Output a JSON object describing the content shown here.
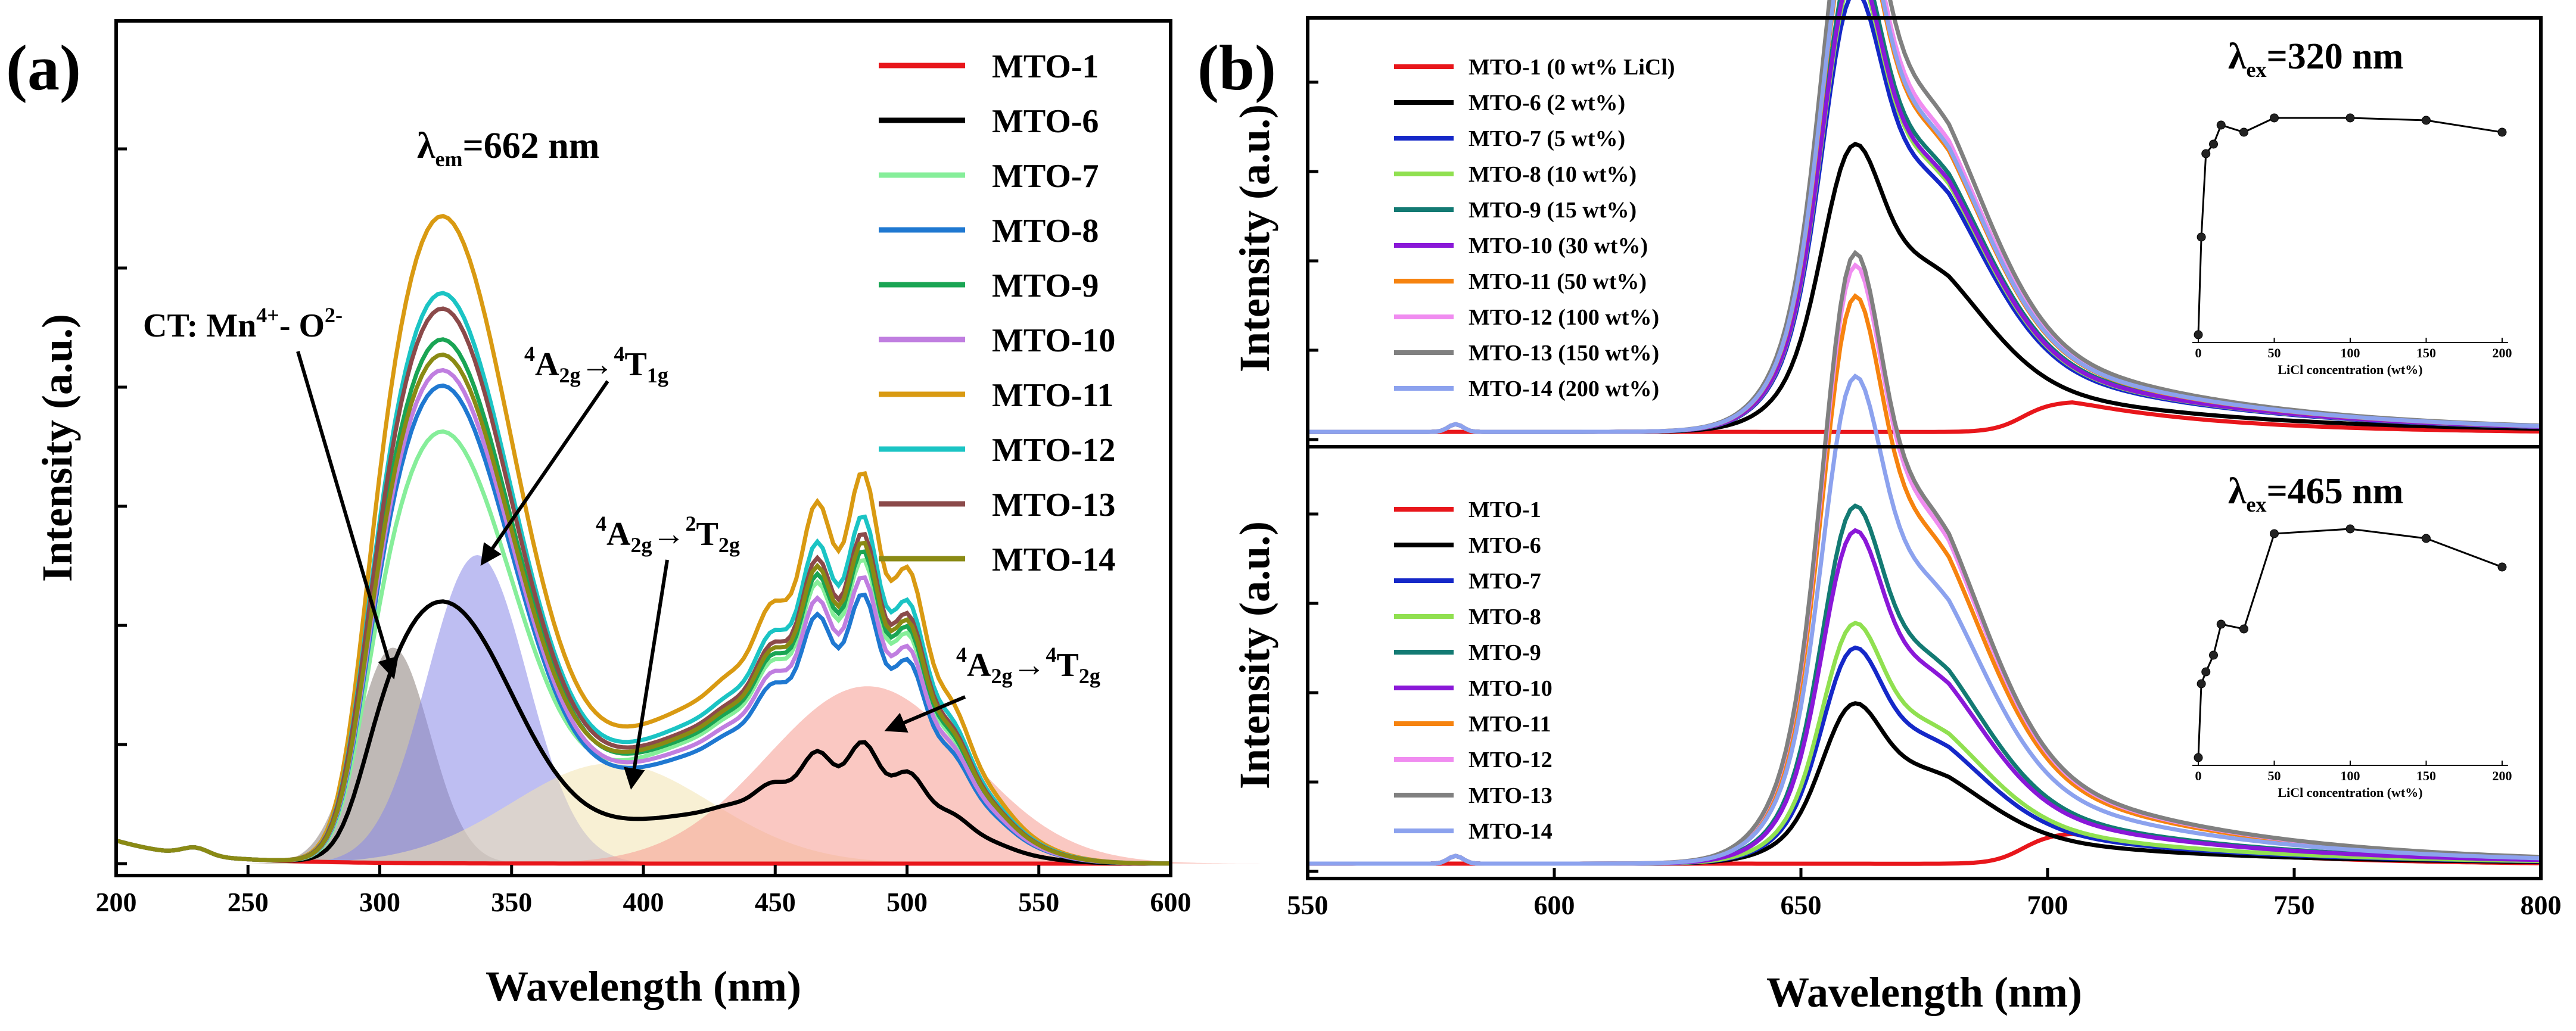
{
  "chart_data": [
    {
      "panel": "(a)",
      "type": "line",
      "xlabel": "Wavelength (nm)",
      "ylabel": "Intensity (a.u.)",
      "xlim": [
        200,
        600
      ],
      "xticks": [
        200,
        250,
        300,
        350,
        400,
        450,
        500,
        550,
        600
      ],
      "ylim": [
        0,
        1.0
      ],
      "y_tick_labels_shown": false,
      "condition": "λem=662 nm",
      "condition_main": "λ",
      "condition_sub": "em",
      "condition_value": "=662 nm",
      "legend_position": "top-right",
      "annotations": [
        {
          "text": "CT: Mn⁴⁺- O²⁻",
          "part1": "CT: Mn",
          "sup1": "4+",
          "part2": "- O",
          "sup2": "2-",
          "arrow_to": [
            305,
            0.3
          ]
        },
        {
          "text": "⁴A2g→⁴T1g",
          "pre": "4",
          "a": "A",
          "a_sub": "2g",
          "arrow": "→",
          "pre2": "4",
          "b": "T",
          "b_sub": "1g",
          "arrow_to": [
            330,
            0.4
          ]
        },
        {
          "text": "⁴A2g→²T2g",
          "pre": "4",
          "a": "A",
          "a_sub": "2g",
          "arrow": "→",
          "pre2": "2",
          "b": "T",
          "b_sub": "2g",
          "arrow_to": [
            390,
            0.1
          ]
        },
        {
          "text": "⁴A2g→⁴T2g",
          "pre": "4",
          "a": "A",
          "a_sub": "2g",
          "arrow": "→",
          "pre2": "4",
          "b": "T",
          "b_sub": "2g",
          "arrow_to": [
            492,
            0.2
          ]
        }
      ],
      "fitted_bands": [
        {
          "name": "CT band",
          "center": 305,
          "width": 14,
          "height": 0.28,
          "color": "#8a7f7a"
        },
        {
          "name": "4A2g→4T1g",
          "center": 337,
          "width": 19,
          "height": 0.4,
          "color": "#8888e8"
        },
        {
          "name": "4A2g→2T2g",
          "center": 388,
          "width": 38,
          "height": 0.13,
          "color": "#f2e4b0"
        },
        {
          "name": "4A2g→4T2g",
          "center": 485,
          "width": 38,
          "height": 0.23,
          "color": "#f59a90"
        }
      ],
      "series": [
        {
          "name": "MTO-1",
          "color": "#e8161b",
          "peak_uv": 0.0,
          "peak_vis": 0.0
        },
        {
          "name": "MTO-6",
          "color": "#000000",
          "peak_uv": 0.34,
          "peak_vis": 0.14
        },
        {
          "name": "MTO-7",
          "color": "#86ee9a",
          "peak_uv": 0.56,
          "peak_vis": 0.35
        },
        {
          "name": "MTO-8",
          "color": "#1f78d1",
          "peak_uv": 0.62,
          "peak_vis": 0.31
        },
        {
          "name": "MTO-9",
          "color": "#1aa554",
          "peak_uv": 0.68,
          "peak_vis": 0.36
        },
        {
          "name": "MTO-10",
          "color": "#c07ee0",
          "peak_uv": 0.64,
          "peak_vis": 0.33
        },
        {
          "name": "MTO-11",
          "color": "#d99a12",
          "peak_uv": 0.84,
          "peak_vis": 0.45
        },
        {
          "name": "MTO-12",
          "color": "#1bc4c4",
          "peak_uv": 0.74,
          "peak_vis": 0.4
        },
        {
          "name": "MTO-13",
          "color": "#8b4a4a",
          "peak_uv": 0.72,
          "peak_vis": 0.38
        },
        {
          "name": "MTO-14",
          "color": "#8a8a14",
          "peak_uv": 0.66,
          "peak_vis": 0.37
        }
      ]
    },
    {
      "panel": "(b)",
      "type": "line",
      "xlabel": "Wavelength (nm)",
      "ylabel": "Intensity (a.u.)",
      "xlim": [
        550,
        800
      ],
      "xticks": [
        550,
        600,
        650,
        700,
        750,
        800
      ],
      "subplots": [
        {
          "condition": "λex=320 nm",
          "condition_main": "λ",
          "condition_sub": "ex",
          "condition_value": "=320 nm",
          "ylim": [
            0,
            1.0
          ],
          "legend_position": "top-left",
          "series": [
            {
              "name": "MTO-1 (0 wt% LiCl)",
              "color": "#e8161b",
              "peak": 0.0
            },
            {
              "name": "MTO-6 (2 wt%)",
              "color": "#000000",
              "peak": 0.47
            },
            {
              "name": "MTO-7 (5 wt%)",
              "color": "#1528c8",
              "peak": 0.72
            },
            {
              "name": "MTO-8 (10 wt%)",
              "color": "#90e050",
              "peak": 0.75
            },
            {
              "name": "MTO-9 (15 wt%)",
              "color": "#137a73",
              "peak": 0.78
            },
            {
              "name": "MTO-10 (30 wt%)",
              "color": "#8a18d8",
              "peak": 0.76
            },
            {
              "name": "MTO-11 (50 wt%)",
              "color": "#f6830f",
              "peak": 0.85
            },
            {
              "name": "MTO-12 (100 wt%)",
              "color": "#f08cf0",
              "peak": 0.88
            },
            {
              "name": "MTO-13 (150 wt%)",
              "color": "#808080",
              "peak": 0.93
            },
            {
              "name": "MTO-14 (200 wt%)",
              "color": "#8ca2ee",
              "peak": 0.86
            }
          ],
          "inset": {
            "xlabel": "LiCl concentration (wt%)",
            "xticks": [
              0,
              50,
              100,
              150,
              200
            ],
            "points": [
              [
                0,
                0.02
              ],
              [
                2,
                0.43
              ],
              [
                5,
                0.78
              ],
              [
                10,
                0.82
              ],
              [
                15,
                0.9
              ],
              [
                30,
                0.87
              ],
              [
                50,
                0.93
              ],
              [
                100,
                0.93
              ],
              [
                150,
                0.92
              ],
              [
                200,
                0.87
              ]
            ]
          }
        },
        {
          "condition": "λex=465 nm",
          "condition_main": "λ",
          "condition_sub": "ex",
          "condition_value": "=465 nm",
          "ylim": [
            0,
            1.0
          ],
          "legend_position": "top-left",
          "series": [
            {
              "name": "MTO-1",
              "color": "#e8161b",
              "peak": 0.0
            },
            {
              "name": "MTO-6",
              "color": "#000000",
              "peak": 0.26
            },
            {
              "name": "MTO-7",
              "color": "#1528c8",
              "peak": 0.35
            },
            {
              "name": "MTO-8",
              "color": "#90e050",
              "peak": 0.39
            },
            {
              "name": "MTO-9",
              "color": "#137a73",
              "peak": 0.58
            },
            {
              "name": "MTO-10",
              "color": "#8a18d8",
              "peak": 0.54
            },
            {
              "name": "MTO-11",
              "color": "#f6830f",
              "peak": 0.92
            },
            {
              "name": "MTO-12",
              "color": "#f08cf0",
              "peak": 0.97
            },
            {
              "name": "MTO-13",
              "color": "#808080",
              "peak": 0.99
            },
            {
              "name": "MTO-14",
              "color": "#8ca2ee",
              "peak": 0.79
            }
          ],
          "inset": {
            "xlabel": "LiCl concentration (wt%)",
            "xticks": [
              0,
              50,
              100,
              150,
              200
            ],
            "points": [
              [
                0,
                0.02
              ],
              [
                2,
                0.33
              ],
              [
                5,
                0.38
              ],
              [
                10,
                0.45
              ],
              [
                15,
                0.58
              ],
              [
                30,
                0.56
              ],
              [
                50,
                0.96
              ],
              [
                100,
                0.98
              ],
              [
                150,
                0.94
              ],
              [
                200,
                0.82
              ]
            ]
          }
        }
      ]
    }
  ]
}
